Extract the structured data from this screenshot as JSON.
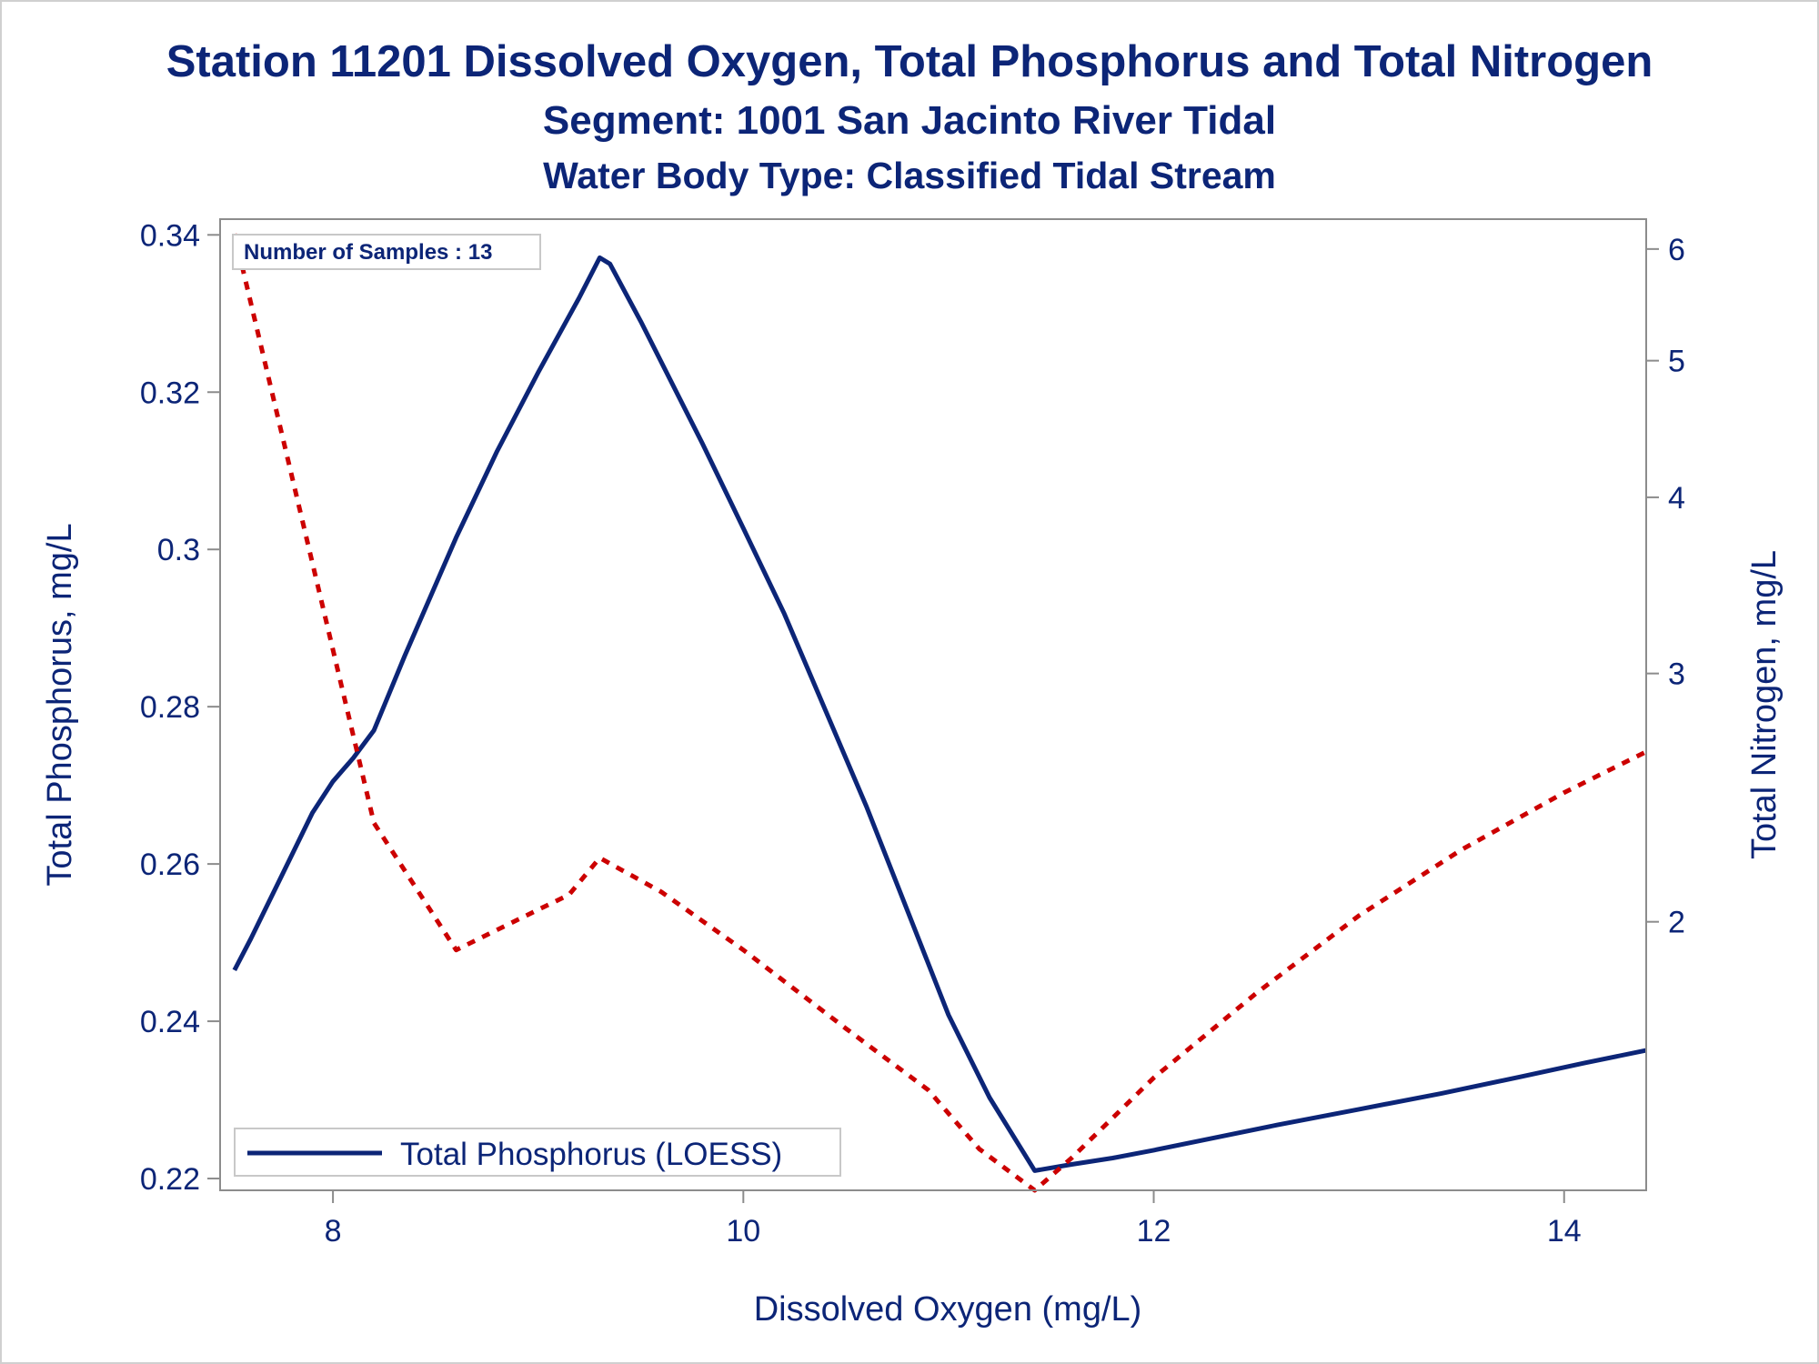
{
  "title": "Station 11201  Dissolved Oxygen, Total Phosphorus and Total Nitrogen",
  "subtitle": "Segment: 1001  San Jacinto River Tidal",
  "subtitle2": "Water Body Type: Classified Tidal Stream",
  "chart_data": {
    "type": "line",
    "title": "Station 11201  Dissolved Oxygen, Total Phosphorus and Total Nitrogen",
    "xlabel": "Dissolved Oxygen (mg/L)",
    "ylabel_left": "Total Phosphorus, mg/L",
    "ylabel_right": "Total Nitrogen, mg/L",
    "xlim": [
      7.45,
      14.4
    ],
    "ylim_left": [
      0.2185,
      0.342
    ],
    "y2_scale": "log",
    "ylim_right": [
      1.29,
      6.3
    ],
    "x_ticks": [
      "8",
      "10",
      "12",
      "14"
    ],
    "y_ticks_left": [
      "0.22",
      "0.24",
      "0.26",
      "0.28",
      "0.3",
      "0.32",
      "0.34"
    ],
    "y_ticks_right": [
      "2",
      "3",
      "4",
      "5",
      "6"
    ],
    "annotation": "Number of Samples : 13",
    "legend": {
      "position": "bottom-left",
      "entries": [
        "Total Phosphorus (LOESS)"
      ]
    },
    "grid": false,
    "colors": {
      "phosphorus": "#0c2577",
      "nitrogen": "#cc0000",
      "axis": "#8c8c8c",
      "text": "#0c2577"
    },
    "series": [
      {
        "name": "Total Phosphorus (LOESS)",
        "axis": "left",
        "style": "solid",
        "x": [
          7.52,
          7.6,
          7.75,
          7.9,
          8.0,
          8.1,
          8.2,
          8.35,
          8.6,
          8.8,
          9.0,
          9.2,
          9.3,
          9.35,
          9.5,
          9.8,
          10.0,
          10.2,
          10.6,
          11.0,
          11.2,
          11.42,
          11.6,
          11.8,
          12.0,
          12.3,
          12.6,
          13.0,
          13.4,
          13.8,
          14.1,
          14.4
        ],
        "y": [
          0.2465,
          0.2505,
          0.2585,
          0.2665,
          0.2705,
          0.2735,
          0.277,
          0.2865,
          0.3015,
          0.3125,
          0.3225,
          0.332,
          0.3371,
          0.3363,
          0.329,
          0.3135,
          0.3027,
          0.2918,
          0.2673,
          0.2408,
          0.2303,
          0.221,
          0.2218,
          0.2226,
          0.2236,
          0.2252,
          0.2268,
          0.2288,
          0.2308,
          0.233,
          0.2347,
          0.2363
        ]
      },
      {
        "name": "",
        "axis": "right",
        "style": "dotted",
        "x": [
          7.52,
          8.2,
          8.6,
          9.0,
          9.15,
          9.3,
          9.6,
          10.0,
          10.5,
          10.9,
          11.15,
          11.42,
          11.6,
          12.0,
          12.5,
          13.0,
          13.5,
          14.0,
          14.4
        ],
        "y": [
          6.15,
          2.35,
          1.91,
          2.04,
          2.09,
          2.22,
          2.1,
          1.91,
          1.68,
          1.52,
          1.38,
          1.29,
          1.36,
          1.55,
          1.78,
          2.02,
          2.25,
          2.47,
          2.64
        ]
      }
    ]
  }
}
